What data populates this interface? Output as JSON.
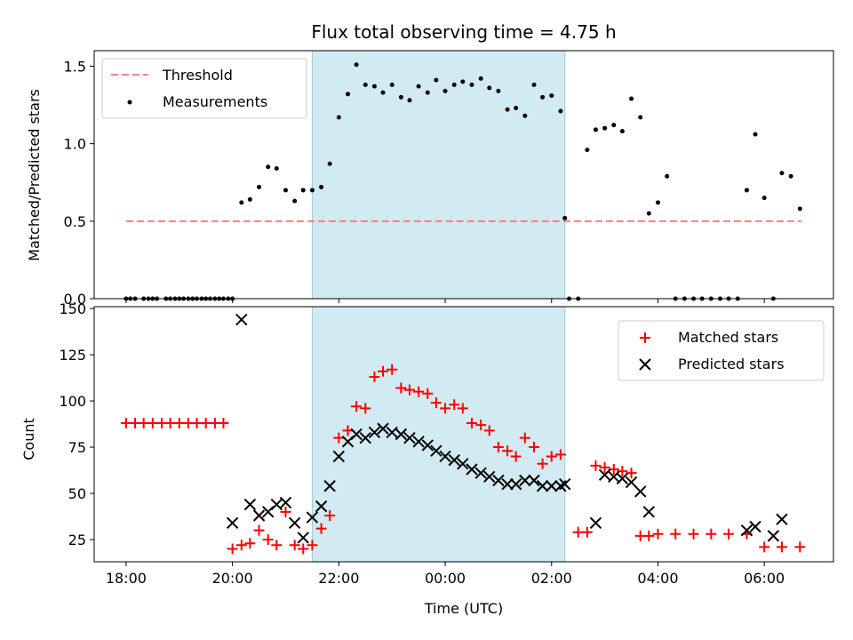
{
  "chart_data": [
    {
      "type": "scatter",
      "title": "Flux total observing time = 4.75 h",
      "xlabel": "",
      "ylabel": "Matched/Predicted stars",
      "x_ticks": [
        "18:00",
        "20:00",
        "22:00",
        "00:00",
        "02:00",
        "04:00",
        "06:00"
      ],
      "x_tick_hours": [
        18,
        20,
        22,
        24,
        26,
        28,
        30
      ],
      "xlim": [
        17.4,
        31.3
      ],
      "ylim": [
        0,
        1.6
      ],
      "y_ticks": [
        "0.0",
        "0.5",
        "1.0",
        "1.5"
      ],
      "y_tick_values": [
        0,
        0.5,
        1.0,
        1.5
      ],
      "shaded_region_hours": [
        21.5,
        26.25
      ],
      "shaded_color": "#add8e6",
      "legend": {
        "position": "upper-left",
        "entries": [
          "Threshold",
          "Measurements"
        ]
      },
      "series": [
        {
          "name": "Threshold",
          "style": "dashed-line",
          "color": "#ff7f7f",
          "x": [
            18.0,
            30.7
          ],
          "y": [
            0.5,
            0.5
          ]
        },
        {
          "name": "Measurements",
          "style": "dot",
          "color": "#000000",
          "x": [
            18.0,
            18.08,
            18.17,
            18.33,
            18.42,
            18.5,
            18.58,
            18.75,
            18.83,
            18.92,
            19.0,
            19.08,
            19.17,
            19.25,
            19.33,
            19.42,
            19.5,
            19.58,
            19.67,
            19.75,
            19.83,
            19.92,
            20.0,
            20.17,
            20.33,
            20.5,
            20.67,
            20.83,
            21.0,
            21.17,
            21.33,
            21.5,
            21.67,
            21.83,
            22.0,
            22.17,
            22.33,
            22.5,
            22.67,
            22.83,
            23.0,
            23.17,
            23.33,
            23.5,
            23.67,
            23.83,
            24.0,
            24.17,
            24.33,
            24.5,
            24.67,
            24.83,
            25.0,
            25.17,
            25.33,
            25.5,
            25.67,
            25.83,
            26.0,
            26.17,
            26.25,
            26.33,
            26.5,
            26.67,
            26.83,
            27.0,
            27.17,
            27.33,
            27.5,
            27.67,
            27.83,
            28.0,
            28.17,
            28.33,
            28.5,
            28.67,
            28.83,
            29.0,
            29.17,
            29.33,
            29.5,
            29.67,
            29.83,
            30.0,
            30.17,
            30.33,
            30.5,
            30.67
          ],
          "y": [
            0.0,
            0.0,
            0.0,
            0.0,
            0.0,
            0.0,
            0.0,
            0.0,
            0.0,
            0.0,
            0.0,
            0.0,
            0.0,
            0.0,
            0.0,
            0.0,
            0.0,
            0.0,
            0.0,
            0.0,
            0.0,
            0.0,
            0.0,
            0.62,
            0.64,
            0.72,
            0.85,
            0.84,
            0.7,
            0.63,
            0.7,
            0.7,
            0.72,
            0.87,
            1.17,
            1.32,
            1.51,
            1.38,
            1.37,
            1.33,
            1.38,
            1.3,
            1.28,
            1.37,
            1.33,
            1.41,
            1.34,
            1.38,
            1.4,
            1.38,
            1.42,
            1.36,
            1.34,
            1.22,
            1.23,
            1.18,
            1.38,
            1.3,
            1.31,
            1.21,
            0.52,
            0.0,
            0.0,
            0.96,
            1.09,
            1.1,
            1.12,
            1.08,
            1.29,
            1.17,
            0.55,
            0.62,
            0.79,
            0.0,
            0.0,
            0.0,
            0.0,
            0.0,
            0.0,
            0.0,
            0.0,
            0.7,
            1.06,
            0.65,
            0.0,
            0.81,
            0.79,
            0.58
          ]
        }
      ]
    },
    {
      "type": "scatter",
      "title": "",
      "xlabel": "Time (UTC)",
      "ylabel": "Count",
      "x_ticks": [
        "18:00",
        "20:00",
        "22:00",
        "00:00",
        "02:00",
        "04:00",
        "06:00"
      ],
      "x_tick_hours": [
        18,
        20,
        22,
        24,
        26,
        28,
        30
      ],
      "xlim": [
        17.4,
        31.3
      ],
      "ylim": [
        13,
        151
      ],
      "y_ticks": [
        "25",
        "50",
        "75",
        "100",
        "125",
        "150"
      ],
      "y_tick_values": [
        25,
        50,
        75,
        100,
        125,
        150
      ],
      "shaded_region_hours": [
        21.5,
        26.25
      ],
      "shaded_color": "#add8e6",
      "legend": {
        "position": "upper-right",
        "entries": [
          "Matched stars",
          "Predicted stars"
        ]
      },
      "series": [
        {
          "name": "Matched stars",
          "marker": "plus",
          "color": "#ff0000",
          "x": [
            18.0,
            18.17,
            18.33,
            18.5,
            18.67,
            18.83,
            19.0,
            19.17,
            19.33,
            19.5,
            19.67,
            19.83,
            20.0,
            20.17,
            20.33,
            20.5,
            20.67,
            20.83,
            21.0,
            21.17,
            21.33,
            21.5,
            21.67,
            21.83,
            22.0,
            22.17,
            22.33,
            22.5,
            22.67,
            22.83,
            23.0,
            23.17,
            23.33,
            23.5,
            23.67,
            23.83,
            24.0,
            24.17,
            24.33,
            24.5,
            24.67,
            24.83,
            25.0,
            25.17,
            25.33,
            25.5,
            25.67,
            25.83,
            26.0,
            26.17,
            26.5,
            26.67,
            26.83,
            27.0,
            27.17,
            27.33,
            27.5,
            27.67,
            27.83,
            28.0,
            28.33,
            28.67,
            29.0,
            29.33,
            29.67,
            30.0,
            30.33,
            30.67
          ],
          "y": [
            88,
            88,
            88,
            88,
            88,
            88,
            88,
            88,
            88,
            88,
            88,
            88,
            20,
            22,
            23,
            30,
            25,
            22,
            40,
            22,
            20,
            22,
            31,
            38,
            80,
            84,
            97,
            96,
            113,
            116,
            117,
            107,
            106,
            105,
            104,
            99,
            96,
            98,
            96,
            88,
            87,
            84,
            75,
            73,
            70,
            80,
            75,
            66,
            70,
            71,
            29,
            29,
            65,
            64,
            63,
            62,
            61,
            27,
            27,
            28,
            28,
            28,
            28,
            28,
            28,
            21,
            21,
            21
          ]
        },
        {
          "name": "Predicted stars",
          "marker": "x",
          "color": "#000000",
          "x": [
            20.0,
            20.17,
            20.33,
            20.5,
            20.67,
            20.83,
            21.0,
            21.17,
            21.33,
            21.5,
            21.67,
            21.83,
            22.0,
            22.17,
            22.33,
            22.5,
            22.67,
            22.83,
            23.0,
            23.17,
            23.33,
            23.5,
            23.67,
            23.83,
            24.0,
            24.17,
            24.33,
            24.5,
            24.67,
            24.83,
            25.0,
            25.17,
            25.33,
            25.5,
            25.67,
            25.83,
            26.0,
            26.17,
            26.25,
            26.83,
            27.0,
            27.17,
            27.33,
            27.5,
            27.67,
            27.83,
            29.67,
            29.83,
            30.17,
            30.33
          ],
          "y": [
            34,
            144,
            44,
            38,
            40,
            44,
            45,
            34,
            26,
            37,
            43,
            54,
            70,
            78,
            82,
            80,
            83,
            85,
            83,
            82,
            80,
            78,
            76,
            73,
            70,
            68,
            66,
            63,
            61,
            59,
            57,
            55,
            55,
            57,
            57,
            54,
            54,
            54,
            55,
            34,
            60,
            59,
            58,
            56,
            51,
            40,
            30,
            32,
            27,
            36
          ]
        }
      ]
    }
  ]
}
